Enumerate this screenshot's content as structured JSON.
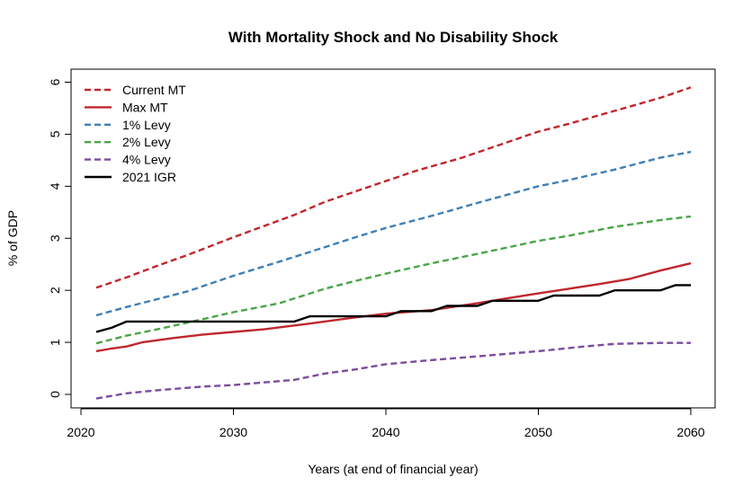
{
  "chart_data": {
    "type": "line",
    "title": "With Mortality Shock and No Disability Shock",
    "xlabel": "Years (at end of financial year)",
    "ylabel": "% of GDP",
    "xlim": [
      2020,
      2060
    ],
    "ylim": [
      0,
      6
    ],
    "x_ticks": [
      2020,
      2030,
      2040,
      2050,
      2060
    ],
    "y_ticks": [
      0,
      1,
      2,
      3,
      4,
      5,
      6
    ],
    "grid": false,
    "legend_position": "top-left",
    "series": [
      {
        "name": "Current MT",
        "color": "#c0272d",
        "style": "dashed",
        "x": [
          2021,
          2023,
          2025,
          2027,
          2030,
          2034,
          2036,
          2040,
          2042,
          2045,
          2048,
          2050,
          2052,
          2055,
          2058,
          2060
        ],
        "values": [
          2.05,
          2.25,
          2.47,
          2.68,
          3.02,
          3.45,
          3.7,
          4.1,
          4.3,
          4.55,
          4.85,
          5.05,
          5.2,
          5.45,
          5.7,
          5.9
        ]
      },
      {
        "name": "Max MT",
        "color": "#c0272d",
        "style": "solid",
        "x": [
          2021,
          2022,
          2023,
          2024,
          2026,
          2028,
          2030,
          2032,
          2035,
          2038,
          2040,
          2043,
          2046,
          2048,
          2050,
          2052,
          2054,
          2056,
          2058,
          2060
        ],
        "values": [
          0.83,
          0.88,
          0.92,
          1.0,
          1.08,
          1.15,
          1.2,
          1.25,
          1.36,
          1.48,
          1.55,
          1.62,
          1.75,
          1.85,
          1.94,
          2.03,
          2.12,
          2.22,
          2.38,
          2.52
        ]
      },
      {
        "name": "1% Levy",
        "color": "#3f7fb5",
        "style": "dashed",
        "x": [
          2021,
          2023,
          2025,
          2027,
          2030,
          2033,
          2036,
          2038,
          2040,
          2043,
          2046,
          2050,
          2052,
          2055,
          2058,
          2060
        ],
        "values": [
          1.52,
          1.68,
          1.83,
          1.98,
          2.28,
          2.55,
          2.83,
          3.02,
          3.2,
          3.43,
          3.68,
          4.0,
          4.12,
          4.32,
          4.55,
          4.66
        ]
      },
      {
        "name": "2% Levy",
        "color": "#4aa548",
        "style": "dashed",
        "x": [
          2021,
          2023,
          2025,
          2027,
          2030,
          2033,
          2036,
          2038,
          2040,
          2043,
          2046,
          2050,
          2052,
          2055,
          2058,
          2060
        ],
        "values": [
          0.98,
          1.13,
          1.25,
          1.38,
          1.58,
          1.75,
          2.03,
          2.18,
          2.32,
          2.52,
          2.7,
          2.95,
          3.05,
          3.22,
          3.35,
          3.42
        ]
      },
      {
        "name": "4% Levy",
        "color": "#7c4c9d",
        "style": "dashed",
        "x": [
          2021,
          2023,
          2025,
          2028,
          2030,
          2034,
          2036,
          2038,
          2040,
          2043,
          2046,
          2050,
          2053,
          2055,
          2058,
          2060
        ],
        "values": [
          -0.08,
          0.02,
          0.08,
          0.15,
          0.18,
          0.28,
          0.4,
          0.48,
          0.58,
          0.66,
          0.73,
          0.83,
          0.92,
          0.97,
          0.99,
          0.99
        ]
      },
      {
        "name": "2021 IGR",
        "color": "#000000",
        "style": "solid",
        "x": [
          2021,
          2022,
          2023,
          2024,
          2025,
          2034,
          2035,
          2036,
          2039,
          2040,
          2041,
          2043,
          2044,
          2046,
          2047,
          2050,
          2051,
          2054,
          2055,
          2058,
          2059,
          2060
        ],
        "values": [
          1.2,
          1.28,
          1.4,
          1.4,
          1.4,
          1.4,
          1.5,
          1.5,
          1.5,
          1.5,
          1.6,
          1.6,
          1.7,
          1.7,
          1.8,
          1.8,
          1.9,
          1.9,
          2.0,
          2.0,
          2.1,
          2.1
        ]
      }
    ]
  }
}
